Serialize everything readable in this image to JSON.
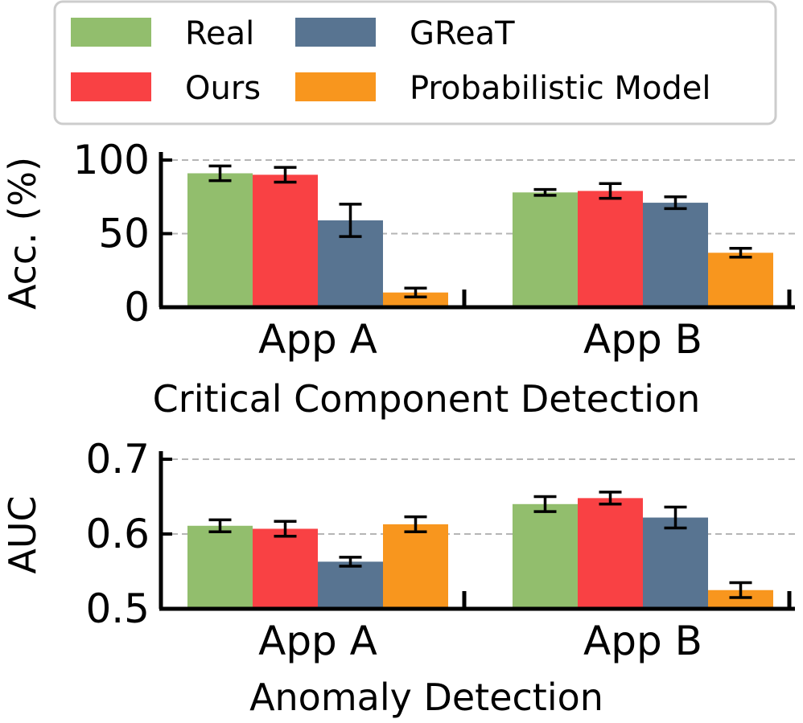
{
  "legend": {
    "items": [
      {
        "label": "Real",
        "color": "#92BE6D"
      },
      {
        "label": "GReaT",
        "color": "#587491"
      },
      {
        "label": "Ours",
        "color": "#F94144"
      },
      {
        "label": "Probabilistic Model",
        "color": "#F8961E"
      }
    ],
    "placement": "top"
  },
  "chart_data": [
    {
      "type": "bar",
      "title": "",
      "xlabel": "Critical Component Detection",
      "ylabel": "Acc. (%)",
      "categories": [
        "App A",
        "App B"
      ],
      "ylim": [
        0,
        100
      ],
      "yticks": [
        "0",
        "50",
        "100"
      ],
      "ytick_values": [
        0,
        50,
        100
      ],
      "grid": "horizontal dashed",
      "series": [
        {
          "name": "Real",
          "color": "#92BE6D",
          "values": [
            91,
            78
          ],
          "errors": [
            5,
            2
          ]
        },
        {
          "name": "Ours",
          "color": "#F94144",
          "values": [
            90,
            79
          ],
          "errors": [
            5,
            5
          ]
        },
        {
          "name": "GReaT",
          "color": "#587491",
          "values": [
            59,
            71
          ],
          "errors": [
            11,
            4
          ]
        },
        {
          "name": "Probabilistic Model",
          "color": "#F8961E",
          "values": [
            10,
            37
          ],
          "errors": [
            3,
            3
          ]
        }
      ]
    },
    {
      "type": "bar",
      "title": "",
      "xlabel": "Anomaly Detection",
      "ylabel": "AUC",
      "categories": [
        "App A",
        "App B"
      ],
      "ylim": [
        0.5,
        0.7
      ],
      "yticks": [
        "0.5",
        "0.6",
        "0.7"
      ],
      "ytick_values": [
        0.5,
        0.6,
        0.7
      ],
      "grid": "horizontal dashed",
      "series": [
        {
          "name": "Real",
          "color": "#92BE6D",
          "values": [
            0.611,
            0.64
          ],
          "errors": [
            0.008,
            0.01
          ]
        },
        {
          "name": "Ours",
          "color": "#F94144",
          "values": [
            0.607,
            0.648
          ],
          "errors": [
            0.01,
            0.008
          ]
        },
        {
          "name": "GReaT",
          "color": "#587491",
          "values": [
            0.563,
            0.622
          ],
          "errors": [
            0.006,
            0.014
          ]
        },
        {
          "name": "Probabilistic Model",
          "color": "#F8961E",
          "values": [
            0.613,
            0.525
          ],
          "errors": [
            0.01,
            0.01
          ]
        }
      ]
    }
  ]
}
